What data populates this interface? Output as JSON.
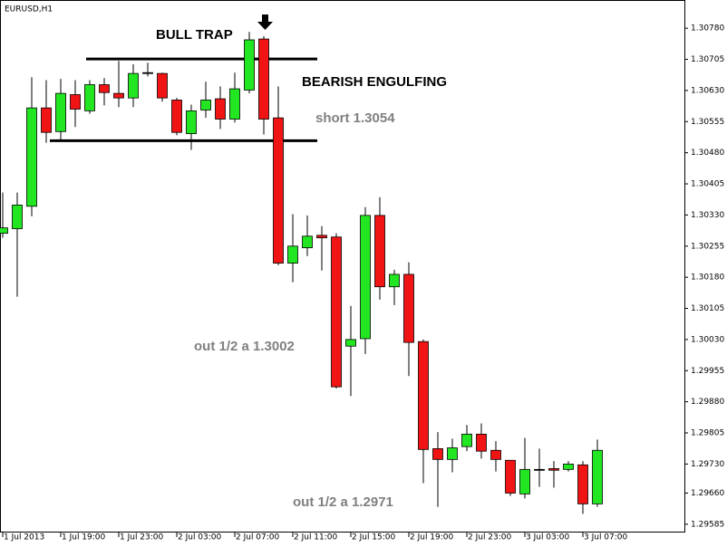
{
  "chart_data": {
    "type": "candlestick",
    "title": "EURUSD,H1",
    "categories": [
      "1 Jul 2013",
      null,
      null,
      null,
      "1 Jul 19:00",
      null,
      null,
      null,
      "1 Jul 23:00",
      null,
      null,
      null,
      "2 Jul 03:00",
      null,
      null,
      null,
      "2 Jul 07:00",
      null,
      null,
      null,
      "2 Jul 11:00",
      null,
      null,
      null,
      "2 Jul 15:00",
      null,
      null,
      null,
      "2 Jul 19:00",
      null,
      null,
      null,
      "2 Jul 23:00",
      null,
      null,
      null,
      "3 Jul 03:00",
      null,
      null,
      null,
      "3 Jul 07:00",
      null
    ],
    "open": [
      1.30286,
      1.30297,
      1.30351,
      1.30588,
      1.30531,
      1.3062,
      1.30581,
      1.30644,
      1.30623,
      1.30612,
      1.30673,
      1.30671,
      1.30607,
      1.30526,
      1.30583,
      1.3061,
      1.30561,
      1.30631,
      1.30754,
      1.30564,
      1.30214,
      1.30251,
      1.30281,
      1.30277,
      1.30014,
      1.30032,
      1.30329,
      1.30157,
      1.30187,
      1.30025,
      1.29767,
      1.29741,
      1.29772,
      1.29802,
      1.29763,
      1.29739,
      1.29658,
      1.29717,
      1.29719,
      1.29717,
      1.29728,
      1.29634
    ],
    "high": [
      1.30384,
      1.30384,
      1.30662,
      1.30655,
      1.30658,
      1.30655,
      1.30655,
      1.3066,
      1.30701,
      1.30693,
      1.30697,
      1.30673,
      1.30612,
      1.30596,
      1.30651,
      1.3064,
      1.30673,
      1.30771,
      1.30761,
      1.3064,
      1.30332,
      1.30329,
      1.30303,
      1.30286,
      1.30111,
      1.30349,
      1.30373,
      1.30198,
      1.30216,
      1.3003,
      1.29807,
      1.29791,
      1.29824,
      1.29828,
      1.29785,
      1.29739,
      1.29793,
      1.29767,
      1.29737,
      1.29737,
      1.29737,
      1.29789
    ],
    "low": [
      1.30275,
      1.30133,
      1.30327,
      1.30504,
      1.30509,
      1.30542,
      1.30574,
      1.30594,
      1.3059,
      1.3059,
      1.30664,
      1.30603,
      1.30522,
      1.30487,
      1.30564,
      1.30537,
      1.30553,
      1.30623,
      1.30524,
      1.30209,
      1.30168,
      1.30231,
      1.30196,
      1.29912,
      1.29894,
      1.29995,
      1.30126,
      1.30113,
      1.29942,
      1.29684,
      1.29627,
      1.2971,
      1.29761,
      1.29743,
      1.29712,
      1.29653,
      1.29647,
      1.29675,
      1.29673,
      1.29712,
      1.2961,
      1.29627
    ],
    "close": [
      1.30299,
      1.30354,
      1.30588,
      1.30529,
      1.30623,
      1.30585,
      1.30644,
      1.30625,
      1.30612,
      1.30671,
      1.30673,
      1.30612,
      1.30529,
      1.30581,
      1.30607,
      1.30561,
      1.30634,
      1.30752,
      1.30561,
      1.30214,
      1.30255,
      1.30279,
      1.30275,
      1.29916,
      1.3003,
      1.30329,
      1.30157,
      1.30187,
      1.30023,
      1.29765,
      1.29741,
      1.29769,
      1.29802,
      1.29761,
      1.29741,
      1.2966,
      1.29717,
      1.29717,
      1.29715,
      1.2973,
      1.29634,
      1.29763
    ],
    "up_color": "#22e622",
    "down_color": "#f01414",
    "ylim": [
      1.29565,
      1.30848
    ],
    "yticks": [
      {
        "value": 1.3078,
        "label": "1.30780"
      },
      {
        "value": 1.30705,
        "label": "1.30705"
      },
      {
        "value": 1.3063,
        "label": "1.30630"
      },
      {
        "value": 1.30555,
        "label": "1.30555"
      },
      {
        "value": 1.3048,
        "label": "1.30480"
      },
      {
        "value": 1.30405,
        "label": "1.30405"
      },
      {
        "value": 1.3033,
        "label": "1.30330"
      },
      {
        "value": 1.30255,
        "label": "1.30255"
      },
      {
        "value": 1.3018,
        "label": "1.30180"
      },
      {
        "value": 1.30105,
        "label": "1.30105"
      },
      {
        "value": 1.3003,
        "label": "1.30030"
      },
      {
        "value": 1.29955,
        "label": "1.29955"
      },
      {
        "value": 1.2988,
        "label": "1.29880"
      },
      {
        "value": 1.29805,
        "label": "1.29805"
      },
      {
        "value": 1.2973,
        "label": "1.29730"
      },
      {
        "value": 1.2966,
        "label": "1.29660"
      },
      {
        "value": 1.29585,
        "label": "1.29585"
      }
    ],
    "levels": [
      1.30706,
      1.30509
    ],
    "annotations": [
      "BULL TRAP",
      "BEARISH ENGULFING",
      "short 1.3054",
      "out 1/2 a 1.3002",
      "out 1/2 a 1.2971"
    ]
  }
}
